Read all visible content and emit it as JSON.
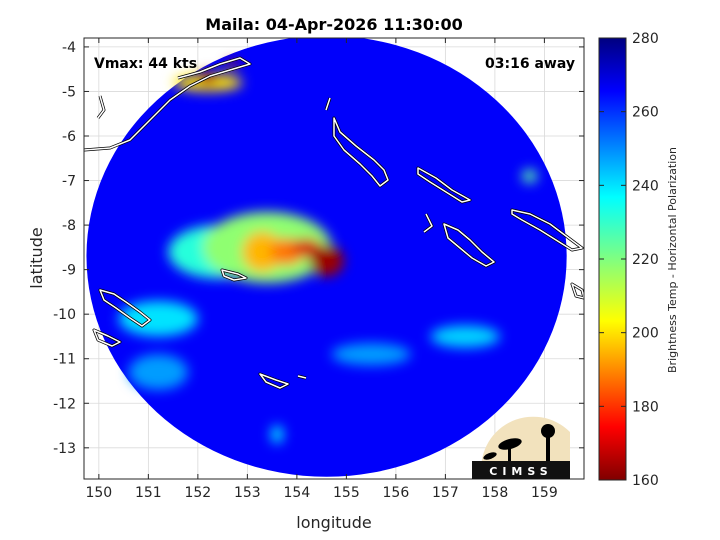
{
  "chart_data": {
    "type": "heatmap",
    "title": "Maila: 04-Apr-2026 11:30:00",
    "xlabel": "longitude",
    "ylabel": "latitude",
    "xlim": [
      149.7,
      159.8
    ],
    "ylim": [
      -13.7,
      -3.8
    ],
    "xticks": [
      150,
      151,
      152,
      153,
      154,
      155,
      156,
      157,
      158,
      159
    ],
    "yticks": [
      -4,
      -5,
      -6,
      -7,
      -8,
      -9,
      -10,
      -11,
      -12,
      -13
    ],
    "grid": true,
    "annotations": {
      "vmax": "Vmax: 44 kts",
      "away": "03:16 away"
    },
    "colorbar": {
      "label": "Brightness Temp - Horizontal Polarization",
      "range": [
        160,
        280
      ],
      "ticks": [
        280,
        260,
        240,
        220,
        200,
        180,
        160
      ],
      "colormap": "jet"
    },
    "swath": {
      "center": [
        154.6,
        -8.7
      ],
      "radius_lon": 4.85,
      "radius_lat": 4.95,
      "background_value": 266
    },
    "features": [
      {
        "lon": 154.6,
        "lat": -8.8,
        "rx": 0.35,
        "ry": 0.35,
        "value": 163
      },
      {
        "lon": 154.2,
        "lat": -8.5,
        "rx": 0.3,
        "ry": 0.2,
        "value": 170
      },
      {
        "lon": 153.8,
        "lat": -8.6,
        "rx": 0.35,
        "ry": 0.3,
        "value": 188
      },
      {
        "lon": 153.3,
        "lat": -8.6,
        "rx": 0.4,
        "ry": 0.45,
        "value": 195
      },
      {
        "lon": 153.4,
        "lat": -8.5,
        "rx": 1.3,
        "ry": 0.8,
        "value": 218
      },
      {
        "lon": 152.4,
        "lat": -8.6,
        "rx": 1.0,
        "ry": 0.6,
        "value": 232
      },
      {
        "lon": 151.2,
        "lat": -10.1,
        "rx": 0.8,
        "ry": 0.4,
        "value": 240
      },
      {
        "lon": 152.2,
        "lat": -4.8,
        "rx": 0.7,
        "ry": 0.2,
        "value": 200
      },
      {
        "lon": 152.2,
        "lat": -4.7,
        "rx": 0.18,
        "ry": 0.15,
        "value": 165
      },
      {
        "lon": 152.7,
        "lat": -4.4,
        "rx": 0.12,
        "ry": 0.1,
        "value": 165
      },
      {
        "lon": 157.4,
        "lat": -10.5,
        "rx": 0.7,
        "ry": 0.25,
        "value": 242
      },
      {
        "lon": 155.5,
        "lat": -10.9,
        "rx": 0.8,
        "ry": 0.25,
        "value": 248
      },
      {
        "lon": 158.7,
        "lat": -6.9,
        "rx": 0.15,
        "ry": 0.15,
        "value": 225
      },
      {
        "lon": 153.6,
        "lat": -12.7,
        "rx": 0.12,
        "ry": 0.2,
        "value": 238
      },
      {
        "lon": 151.2,
        "lat": -11.3,
        "rx": 0.6,
        "ry": 0.4,
        "value": 248
      }
    ]
  },
  "logo": {
    "text": "CIMSS"
  },
  "colors": {
    "coast": "#ffffff",
    "coast_outline": "#000000",
    "grid": "#d9d9d9",
    "axis": "#262626"
  }
}
